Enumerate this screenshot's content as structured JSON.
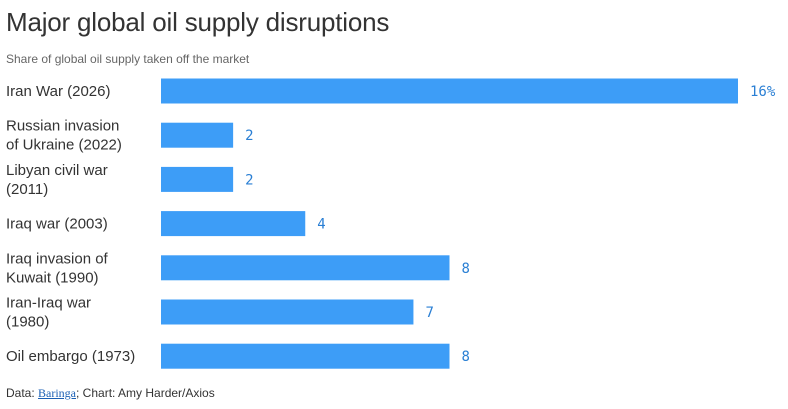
{
  "title": "Major global oil supply disruptions",
  "subtitle": "Share of global oil supply taken off the market",
  "footer": {
    "prefix": "Data: ",
    "source": "Baringa",
    "suffix": "; Chart: Amy Harder/Axios"
  },
  "colors": {
    "bar": "#3d9df7",
    "value_label": "#2a7fd4"
  },
  "chart_data": {
    "type": "bar",
    "orientation": "horizontal",
    "categories": [
      [
        "Iran War (2026)"
      ],
      [
        "Russian invasion",
        "of Ukraine (2022)"
      ],
      [
        "Libyan civil war",
        "(2011)"
      ],
      [
        "Iraq war (2003)"
      ],
      [
        "Iraq invasion of",
        "Kuwait (1990)"
      ],
      [
        "Iran-Iraq war",
        "(1980)"
      ],
      [
        "Oil embargo (1973)"
      ]
    ],
    "values": [
      16,
      2,
      2,
      4,
      8,
      7,
      8
    ],
    "value_labels": [
      "16%",
      "2",
      "2",
      "4",
      "8",
      "7",
      "8"
    ],
    "xlim": [
      0,
      16
    ],
    "grid": false,
    "legend": false
  }
}
